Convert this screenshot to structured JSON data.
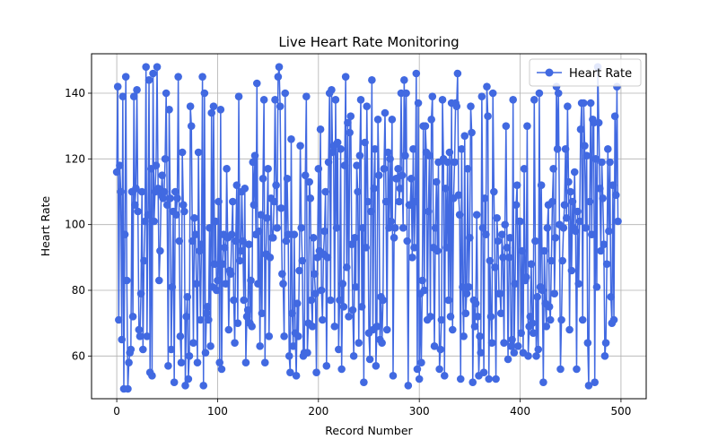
{
  "chart_data": {
    "type": "line",
    "title": "Live Heart Rate Monitoring",
    "xlabel": "Record Number",
    "ylabel": "Heart Rate",
    "xlim": [
      -25,
      525
    ],
    "ylim": [
      47,
      152
    ],
    "xticks": [
      0,
      100,
      200,
      300,
      400,
      500
    ],
    "yticks": [
      60,
      80,
      100,
      120,
      140
    ],
    "grid": true,
    "legend": "upper right",
    "color": "#4169e1",
    "marker": "circle",
    "series": [
      {
        "name": "Heart Rate",
        "x_start": 0,
        "x_step": 1,
        "values": [
          116,
          142,
          71,
          118,
          110,
          65,
          139,
          50,
          97,
          145,
          83,
          50,
          58,
          61,
          62,
          110,
          72,
          139,
          106,
          111,
          141,
          104,
          68,
          66,
          79,
          110,
          62,
          89,
          101,
          148,
          66,
          103,
          144,
          55,
          117,
          54,
          146,
          101,
          110,
          118,
          148,
          111,
          83,
          92,
          109,
          115,
          108,
          110,
          120,
          140,
          106,
          57,
          135,
          108,
          62,
          81,
          104,
          52,
          110,
          103,
          108,
          145,
          95,
          66,
          58,
          122,
          106,
          104,
          51,
          72,
          78,
          53,
          60,
          136,
          130,
          95,
          64,
          102,
          97,
          82,
          58,
          122,
          92,
          71,
          94,
          145,
          51,
          140,
          61,
          73,
          75,
          71,
          99,
          63,
          134,
          81,
          136,
          88,
          101,
          80,
          83,
          107,
          58,
          135,
          56,
          88,
          97,
          93,
          82,
          117,
          96,
          68,
          86,
          85,
          97,
          107,
          77,
          64,
          95,
          112,
          70,
          139,
          89,
          92,
          110,
          95,
          77,
          111,
          58,
          72,
          74,
          94,
          70,
          83,
          69,
          119,
          106,
          121,
          97,
          143,
          82,
          98,
          63,
          103,
          73,
          114,
          138,
          58,
          91,
          102,
          117,
          66,
          90,
          108,
          96,
          96,
          107,
          138,
          112,
          99,
          145,
          148,
          136,
          105,
          85,
          82,
          66,
          140,
          95,
          114,
          97,
          60,
          55,
          126,
          73,
          63,
          97,
          67,
          54,
          76,
          66,
          86,
          124,
          99,
          89,
          60,
          61,
          115,
          139,
          61,
          70,
          113,
          108,
          77,
          69,
          96,
          85,
          79,
          55,
          90,
          117,
          92,
          129,
          80,
          71,
          91,
          98,
          110,
          57,
          90,
          119,
          140,
          77,
          141,
          122,
          124,
          69,
          138,
          99,
          125,
          62,
          77,
          123,
          56,
          82,
          75,
          118,
          145,
          87,
          131,
          72,
          128,
          133,
          94,
          74,
          60,
          96,
          81,
          118,
          110,
          64,
          121,
          138,
          75,
          99,
          52,
          125,
          93,
          136,
          107,
          67,
          59,
          104,
          144,
          68,
          111,
          123,
          57,
          69,
          132,
          115,
          65,
          78,
          64,
          77,
          117,
          134,
          107,
          68,
          122,
          99,
          120,
          101,
          132,
          54,
          96,
          99,
          114,
          114,
          117,
          107,
          111,
          140,
          115,
          99,
          144,
          121,
          140,
          95,
          51,
          106,
          106,
          114,
          90,
          123,
          93,
          107,
          146,
          56,
          137,
          53,
          79,
          58,
          83,
          130,
          80,
          130,
          122,
          71,
          104,
          121,
          72,
          132,
          139,
          93,
          63,
          99,
          113,
          92,
          119,
          56,
          62,
          71,
          138,
          120,
          54,
          111,
          93,
          119,
          77,
          122,
          72,
          137,
          68,
          108,
          119,
          137,
          136,
          146,
          109,
          103,
          53,
          123,
          81,
          66,
          127,
          73,
          79,
          117,
          81,
          96,
          136,
          128,
          52,
          77,
          69,
          76,
          103,
          72,
          54,
          66,
          61,
          139,
          99,
          55,
          108,
          97,
          142,
          133,
          53,
          89,
          72,
          64,
          140,
          110,
          87,
          53,
          102,
          95,
          79,
          79,
          73,
          97,
          90,
          64,
          100,
          130,
          93,
          59,
          90,
          96,
          63,
          65,
          138,
          61,
          82,
          106,
          112,
          63,
          101,
          101,
          67,
          92,
          61,
          117,
          83,
          84,
          130,
          60,
          69,
          72,
          88,
          70,
          67,
          138,
          95,
          60,
          78,
          62,
          140,
          81,
          112,
          80,
          52,
          92,
          76,
          69,
          99,
          106,
          75,
          71,
          89,
          107,
          117,
          79,
          96,
          142,
          123,
          140,
          100,
          56,
          71,
          89,
          99,
          106,
          123,
          102,
          136,
          113,
          68,
          110,
          86,
          107,
          99,
          116,
          98,
          56,
          104,
          82,
          101,
          129,
          137,
          71,
          137,
          124,
          99,
          121,
          64,
          51,
          107,
          137,
          97,
          132,
          131,
          52,
          120,
          81,
          148,
          131,
          111,
          92,
          119,
          108,
          94,
          60,
          64,
          88,
          123,
          98,
          119,
          78,
          70,
          112,
          71,
          133,
          109,
          142,
          101
        ]
      }
    ]
  }
}
